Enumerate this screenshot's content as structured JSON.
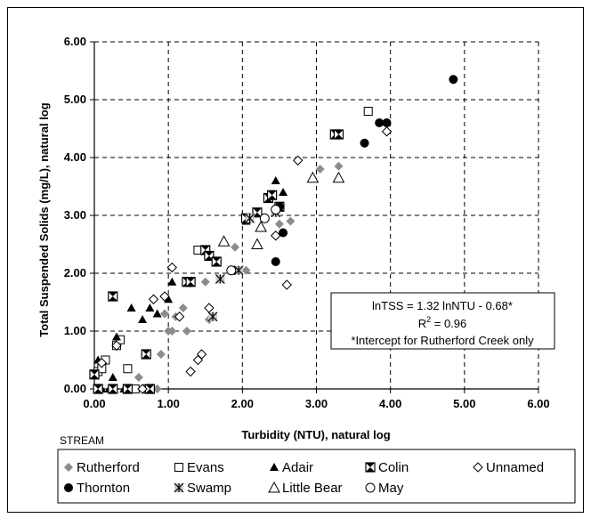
{
  "chart_data": {
    "type": "scatter",
    "title": "",
    "xlabel": "Turbidity (NTU), natural log",
    "ylabel": "Total Suspended Solids (mg/L), natural log",
    "xlim": [
      0,
      6
    ],
    "ylim": [
      0,
      6
    ],
    "x_ticks": [
      "0.00",
      "1.00",
      "2.00",
      "3.00",
      "4.00",
      "5.00",
      "6.00"
    ],
    "y_ticks": [
      "0.00",
      "1.00",
      "2.00",
      "3.00",
      "4.00",
      "5.00",
      "6.00"
    ],
    "grid": true,
    "legend_position": "bottom",
    "legend_title": "STREAM",
    "annotation": {
      "line1": "lnTSS = 1.32 lnNTU - 0.68*",
      "line2_base": "R",
      "line2_sup": "2",
      "line2_rest": " = 0.96",
      "line3": "*Intercept for Rutherford Creek only"
    },
    "series": [
      {
        "name": "Rutherford",
        "marker": "diamond",
        "color": "#8c8c8c",
        "x": [
          0.6,
          0.65,
          0.85,
          0.9,
          0.95,
          1.0,
          1.05,
          1.1,
          1.2,
          1.25,
          1.5,
          1.55,
          1.7,
          1.9,
          2.05,
          2.5,
          2.65,
          3.05,
          3.3,
          3.65
        ],
        "y": [
          0.2,
          0.0,
          0.0,
          0.6,
          1.3,
          1.0,
          1.0,
          1.25,
          1.4,
          1.0,
          1.85,
          1.2,
          1.9,
          2.45,
          2.05,
          2.85,
          2.9,
          3.8,
          3.85,
          4.25
        ]
      },
      {
        "name": "Evans",
        "marker": "square",
        "color": "#000000",
        "x": [
          0.05,
          0.1,
          0.15,
          0.3,
          0.35,
          0.45,
          0.55,
          0.7,
          1.4,
          3.7
        ],
        "y": [
          0.3,
          0.35,
          0.5,
          0.75,
          0.85,
          0.35,
          0.0,
          0.0,
          2.4,
          4.8
        ]
      },
      {
        "name": "Adair",
        "marker": "triangle",
        "color": "#000000",
        "x": [
          0.05,
          0.1,
          0.2,
          0.25,
          0.3,
          0.4,
          0.5,
          0.65,
          0.75,
          0.85,
          1.0,
          1.05,
          2.05,
          2.45,
          2.55
        ],
        "y": [
          0.5,
          0.0,
          0.0,
          0.2,
          0.9,
          0.0,
          1.4,
          1.2,
          1.4,
          1.3,
          1.55,
          1.85,
          2.9,
          3.6,
          3.4
        ]
      },
      {
        "name": "Colin",
        "marker": "xsquare",
        "color": "#000000",
        "x": [
          0.0,
          0.05,
          0.25,
          0.25,
          0.45,
          0.7,
          0.75,
          1.25,
          1.3,
          1.5,
          1.55,
          1.65,
          2.05,
          2.2,
          2.35,
          2.4,
          2.5,
          3.25,
          3.3
        ],
        "y": [
          0.25,
          0.0,
          1.6,
          0.0,
          0.0,
          0.6,
          0.0,
          1.85,
          1.85,
          2.4,
          2.3,
          2.2,
          2.95,
          3.05,
          3.3,
          3.35,
          3.15,
          4.4,
          4.4
        ]
      },
      {
        "name": "Unnamed",
        "marker": "hdiamond",
        "color": "#000000",
        "x": [
          0.1,
          0.3,
          0.65,
          0.8,
          0.95,
          1.05,
          1.15,
          1.3,
          1.4,
          1.45,
          1.55,
          2.45,
          2.6,
          2.75,
          3.95
        ],
        "y": [
          0.45,
          0.75,
          0.0,
          1.55,
          1.6,
          2.1,
          1.25,
          0.3,
          0.5,
          0.6,
          1.4,
          2.65,
          1.8,
          3.95,
          4.45
        ]
      },
      {
        "name": "Thornton",
        "marker": "circle",
        "color": "#000000",
        "x": [
          2.45,
          2.55,
          2.5,
          3.65,
          3.85,
          3.95,
          4.85
        ],
        "y": [
          2.2,
          2.7,
          3.15,
          4.25,
          4.6,
          4.6,
          5.35
        ]
      },
      {
        "name": "Swamp",
        "marker": "star",
        "color": "#000000",
        "x": [
          1.6,
          1.7,
          1.95,
          2.1,
          2.45
        ],
        "y": [
          1.25,
          1.9,
          2.05,
          2.95,
          3.05
        ]
      },
      {
        "name": "Little Bear",
        "marker": "htriangle",
        "color": "#000000",
        "x": [
          1.75,
          2.2,
          2.25,
          2.95,
          3.3
        ],
        "y": [
          2.55,
          2.5,
          2.8,
          3.65,
          3.65
        ]
      },
      {
        "name": "May",
        "marker": "hcircle",
        "color": "#000000",
        "x": [
          1.85,
          2.3,
          2.45
        ],
        "y": [
          2.05,
          2.95,
          3.1
        ]
      }
    ]
  }
}
